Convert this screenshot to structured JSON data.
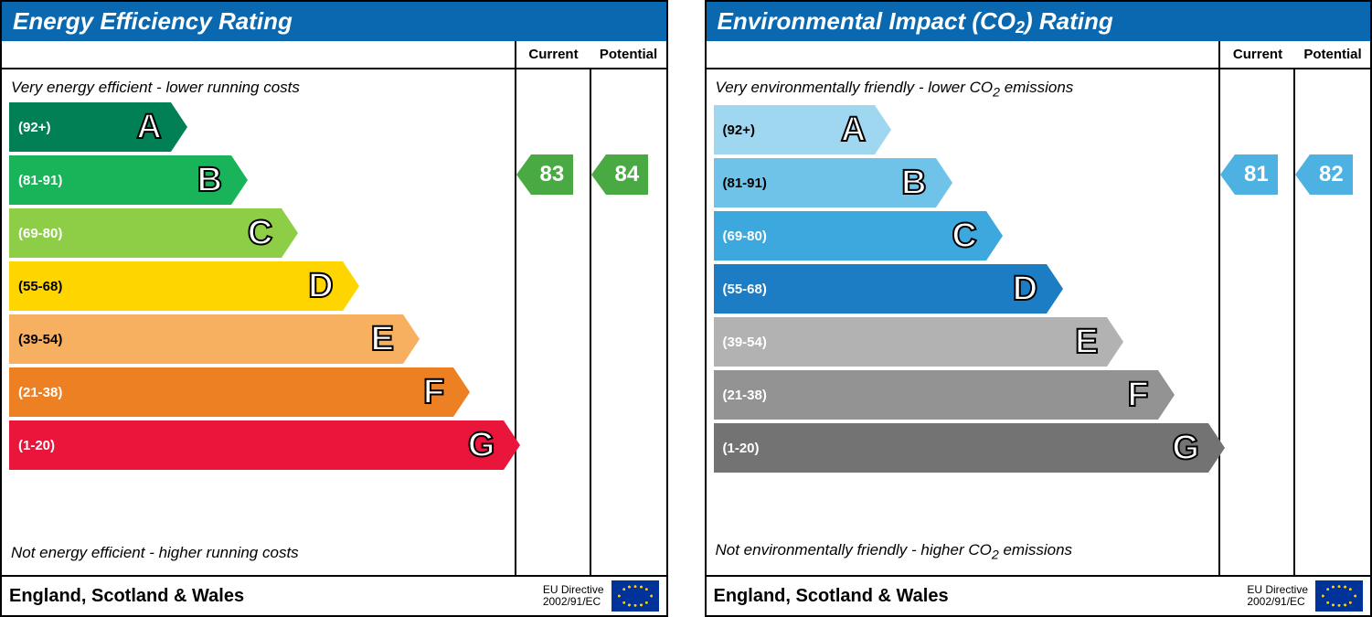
{
  "charts": [
    {
      "title_html": "Energy Efficiency Rating",
      "top_desc": "Very energy efficient - lower running costs",
      "bottom_desc": "Not energy efficient - higher running costs",
      "header_current": "Current",
      "header_potential": "Potential",
      "region": "England, Scotland & Wales",
      "directive_line1": "EU Directive",
      "directive_line2": "2002/91/EC",
      "title_bg": "#0968b0",
      "pointer_color": "#49a942",
      "current_value": 83,
      "potential_value": 84,
      "current_band_index": 1,
      "potential_band_index": 1,
      "bands": [
        {
          "letter": "A",
          "range": "(92+)",
          "color": "#008054",
          "text": "#ffffff",
          "width_pct": 32
        },
        {
          "letter": "B",
          "range": "(81-91)",
          "color": "#19b459",
          "text": "#ffffff",
          "width_pct": 44
        },
        {
          "letter": "C",
          "range": "(69-80)",
          "color": "#8dce46",
          "text": "#ffffff",
          "width_pct": 54
        },
        {
          "letter": "D",
          "range": "(55-68)",
          "color": "#ffd500",
          "text": "#000000",
          "width_pct": 66
        },
        {
          "letter": "E",
          "range": "(39-54)",
          "color": "#f7af60",
          "text": "#000000",
          "width_pct": 78
        },
        {
          "letter": "F",
          "range": "(21-38)",
          "color": "#ed8023",
          "text": "#ffffff",
          "width_pct": 88
        },
        {
          "letter": "G",
          "range": "(1-20)",
          "color": "#e9153b",
          "text": "#ffffff",
          "width_pct": 98
        }
      ]
    },
    {
      "title_html": "Environmental Impact (CO<sub>2</sub>) Rating",
      "top_desc_html": "Very environmentally friendly - lower CO<sub>2</sub> emissions",
      "bottom_desc_html": "Not environmentally friendly - higher CO<sub>2</sub> emissions",
      "header_current": "Current",
      "header_potential": "Potential",
      "region": "England, Scotland & Wales",
      "directive_line1": "EU Directive",
      "directive_line2": "2002/91/EC",
      "title_bg": "#0968b0",
      "pointer_color": "#4db1e2",
      "current_value": 81,
      "potential_value": 82,
      "current_band_index": 1,
      "potential_band_index": 1,
      "bands": [
        {
          "letter": "A",
          "range": "(92+)",
          "color": "#a0d7f0",
          "text": "#000000",
          "width_pct": 32
        },
        {
          "letter": "B",
          "range": "(81-91)",
          "color": "#6fc2e8",
          "text": "#000000",
          "width_pct": 44
        },
        {
          "letter": "C",
          "range": "(69-80)",
          "color": "#3ca8dd",
          "text": "#ffffff",
          "width_pct": 54
        },
        {
          "letter": "D",
          "range": "(55-68)",
          "color": "#1c7cc4",
          "text": "#ffffff",
          "width_pct": 66
        },
        {
          "letter": "E",
          "range": "(39-54)",
          "color": "#b2b2b2",
          "text": "#ffffff",
          "width_pct": 78
        },
        {
          "letter": "F",
          "range": "(21-38)",
          "color": "#939393",
          "text": "#ffffff",
          "width_pct": 88
        },
        {
          "letter": "G",
          "range": "(1-20)",
          "color": "#737373",
          "text": "#ffffff",
          "width_pct": 98
        }
      ]
    }
  ]
}
